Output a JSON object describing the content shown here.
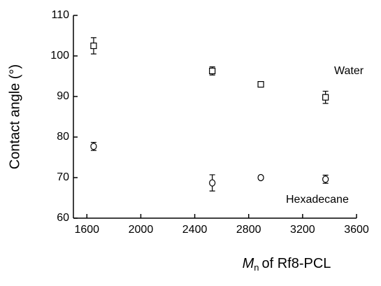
{
  "chart_data": {
    "type": "scatter",
    "xlabel_symbol": "M",
    "xlabel_subscript": "n",
    "xlabel_rest": "of Rf8-PCL",
    "ylabel": "Contact angle (°)",
    "xlim": [
      1500,
      3600
    ],
    "xticks": [
      1600,
      2000,
      2400,
      2800,
      3200,
      3600
    ],
    "ylim": [
      60,
      110
    ],
    "yticks": [
      60,
      70,
      80,
      90,
      100,
      110
    ],
    "x": [
      1650,
      2530,
      2890,
      3370
    ],
    "series": [
      {
        "name": "Water",
        "marker": "square",
        "color": "#000000",
        "values": [
          102.5,
          96.3,
          93.0,
          89.8
        ],
        "errors": [
          2.0,
          1.0,
          0.6,
          1.5
        ]
      },
      {
        "name": "Hexadecane",
        "marker": "circle",
        "color": "#000000",
        "values": [
          77.7,
          68.7,
          70.0,
          69.6
        ],
        "errors": [
          1.0,
          2.0,
          0.4,
          1.0
        ]
      }
    ]
  }
}
